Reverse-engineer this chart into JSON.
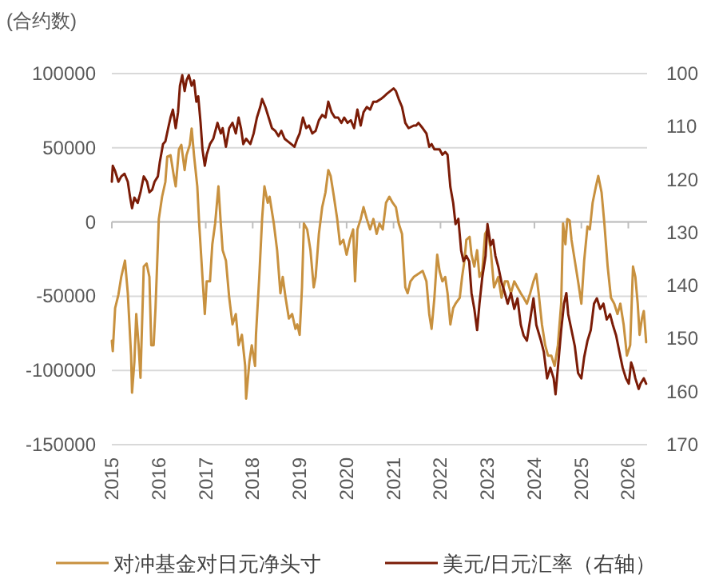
{
  "chart_data": {
    "type": "line",
    "ylabel": "(合约数)",
    "legend": "bottom",
    "grid": "y",
    "xlim": [
      2015,
      2026.4
    ],
    "xticks": [
      2015,
      2016,
      2017,
      2018,
      2019,
      2020,
      2021,
      2022,
      2023,
      2024,
      2025,
      2026
    ],
    "ylim": [
      -150000,
      100000
    ],
    "yticks": [
      -150000,
      -100000,
      -50000,
      0,
      50000,
      100000
    ],
    "y2lim": [
      170,
      100
    ],
    "y2ticks": [
      100,
      110,
      120,
      130,
      140,
      150,
      160,
      170
    ],
    "series": [
      {
        "name": "对冲基金对日元净头寸",
        "color": "#c8913f",
        "x": [
          2015.0,
          2015.02,
          2015.07,
          2015.14,
          2015.2,
          2015.28,
          2015.34,
          2015.41,
          2015.43,
          2015.48,
          2015.52,
          2015.57,
          2015.61,
          2015.68,
          2015.74,
          2015.8,
          2015.84,
          2015.89,
          2015.93,
          2016.0,
          2016.07,
          2016.14,
          2016.18,
          2016.25,
          2016.32,
          2016.36,
          2016.43,
          2016.48,
          2016.55,
          2016.59,
          2016.66,
          2016.7,
          2016.75,
          2016.82,
          2016.86,
          2016.93,
          2016.98,
          2017.02,
          2017.09,
          2017.14,
          2017.2,
          2017.27,
          2017.32,
          2017.36,
          2017.43,
          2017.5,
          2017.57,
          2017.64,
          2017.7,
          2017.77,
          2017.84,
          2017.86,
          2017.93,
          2017.98,
          2018.05,
          2018.07,
          2018.14,
          2018.2,
          2018.25,
          2018.32,
          2018.36,
          2018.45,
          2018.52,
          2018.59,
          2018.64,
          2018.7,
          2018.77,
          2018.84,
          2018.91,
          2018.95,
          2019.0,
          2019.05,
          2019.09,
          2019.16,
          2019.23,
          2019.3,
          2019.34,
          2019.41,
          2019.48,
          2019.55,
          2019.61,
          2019.66,
          2019.73,
          2019.8,
          2019.86,
          2019.93,
          2020.0,
          2020.07,
          2020.14,
          2020.18,
          2020.23,
          2020.3,
          2020.36,
          2020.43,
          2020.5,
          2020.57,
          2020.64,
          2020.7,
          2020.77,
          2020.84,
          2020.91,
          2020.98,
          2021.05,
          2021.11,
          2021.18,
          2021.25,
          2021.3,
          2021.36,
          2021.43,
          2021.62,
          2021.7,
          2021.76,
          2021.81,
          2021.87,
          2021.93,
          2021.98,
          2022.04,
          2022.1,
          2022.15,
          2022.21,
          2022.27,
          2022.32,
          2022.41,
          2022.46,
          2022.51,
          2022.55,
          2022.62,
          2022.66,
          2022.72,
          2022.78,
          2022.83,
          2022.89,
          2022.95,
          2023.0,
          2023.07,
          2023.14,
          2023.23,
          2023.3,
          2023.37,
          2023.43,
          2023.5,
          2023.57,
          2023.64,
          2023.71,
          2023.77,
          2023.84,
          2023.91,
          2023.98,
          2024.04,
          2024.09,
          2024.16,
          2024.23,
          2024.29,
          2024.36,
          2024.43,
          2024.5,
          2024.57,
          2024.61,
          2024.66,
          2024.7,
          2024.75,
          2024.79,
          2024.86,
          2024.93,
          2025.0,
          2025.06,
          2025.13,
          2025.18,
          2025.24,
          2025.31,
          2025.36,
          2025.43,
          2025.49,
          2025.56,
          2025.63,
          2025.7,
          2025.77,
          2025.83,
          2025.9,
          2025.97,
          2026.04,
          2026.1,
          2026.15,
          2026.2,
          2026.24,
          2026.29,
          2026.33,
          2026.38
        ],
        "values": [
          -80000,
          -87000,
          -58000,
          -49000,
          -37000,
          -26000,
          -48000,
          -90000,
          -115000,
          -94000,
          -62000,
          -83000,
          -105000,
          -30000,
          -28000,
          -37000,
          -83000,
          -83000,
          -58000,
          2000,
          17000,
          27000,
          44000,
          45000,
          31000,
          24000,
          49000,
          52000,
          35000,
          45000,
          52000,
          63000,
          45000,
          24000,
          -1000,
          -37000,
          -62000,
          -40000,
          -40000,
          -15000,
          -1000,
          24000,
          -1000,
          -19000,
          -26000,
          -51000,
          -69000,
          -62000,
          -83000,
          -76000,
          -97000,
          -119000,
          -94000,
          -83000,
          -97000,
          -76000,
          -37000,
          2000,
          24000,
          13000,
          17000,
          -1000,
          -19000,
          -48000,
          -37000,
          -51000,
          -65000,
          -62000,
          -72000,
          -69000,
          -76000,
          -44000,
          -1000,
          -5000,
          -19000,
          -44000,
          -37000,
          -8000,
          10000,
          20000,
          35000,
          31000,
          17000,
          2000,
          -15000,
          -12000,
          -22000,
          -12000,
          -5000,
          -40000,
          -5000,
          2000,
          10000,
          2000,
          -5000,
          2000,
          -8000,
          -1000,
          -5000,
          13000,
          17000,
          13000,
          10000,
          -1000,
          -8000,
          -44000,
          -48000,
          -40000,
          -37000,
          -33000,
          -40000,
          -62000,
          -72000,
          -51000,
          -22000,
          -33000,
          -40000,
          -37000,
          -48000,
          -69000,
          -58000,
          -55000,
          -51000,
          -37000,
          -26000,
          -12000,
          -10000,
          -22000,
          -30000,
          -19000,
          -37000,
          -33000,
          -8000,
          -5000,
          -19000,
          -44000,
          -37000,
          -51000,
          -40000,
          -40000,
          -48000,
          -40000,
          -44000,
          -48000,
          -51000,
          -55000,
          -48000,
          -40000,
          -35000,
          -48000,
          -69000,
          -83000,
          -90000,
          -90000,
          -97000,
          -83000,
          -55000,
          -1000,
          -15000,
          2000,
          1000,
          -12000,
          -26000,
          -40000,
          -55000,
          -26000,
          -3000,
          -5000,
          13000,
          24000,
          31000,
          20000,
          -1000,
          -30000,
          -51000,
          -55000,
          -62000,
          -55000,
          -69000,
          -90000,
          -83000,
          -30000,
          -37000,
          -55000,
          -76000,
          -65000,
          -60000,
          -81000
        ]
      },
      {
        "name": "美元/日元汇率（右轴）",
        "color": "#7b1c07",
        "axis": "y2",
        "x": [
          2015.0,
          2015.02,
          2015.07,
          2015.14,
          2015.2,
          2015.27,
          2015.34,
          2015.39,
          2015.43,
          2015.48,
          2015.55,
          2015.61,
          2015.68,
          2015.75,
          2015.8,
          2015.86,
          2015.91,
          2015.98,
          2016.02,
          2016.09,
          2016.14,
          2016.2,
          2016.25,
          2016.3,
          2016.36,
          2016.41,
          2016.45,
          2016.5,
          2016.55,
          2016.59,
          2016.64,
          2016.7,
          2016.75,
          2016.8,
          2016.84,
          2016.89,
          2016.93,
          2016.98,
          2017.02,
          2017.09,
          2017.16,
          2017.25,
          2017.32,
          2017.36,
          2017.43,
          2017.5,
          2017.57,
          2017.64,
          2017.7,
          2017.75,
          2017.8,
          2017.86,
          2017.95,
          2018.02,
          2018.09,
          2018.16,
          2018.2,
          2018.27,
          2018.34,
          2018.41,
          2018.48,
          2018.55,
          2018.61,
          2018.68,
          2018.75,
          2018.82,
          2018.89,
          2018.95,
          2019.0,
          2019.07,
          2019.14,
          2019.2,
          2019.27,
          2019.34,
          2019.41,
          2019.48,
          2019.55,
          2019.61,
          2019.68,
          2019.75,
          2019.82,
          2019.89,
          2019.95,
          2020.02,
          2020.09,
          2020.16,
          2020.23,
          2020.3,
          2020.36,
          2020.43,
          2020.5,
          2020.57,
          2020.64,
          2020.73,
          2020.8,
          2020.86,
          2020.93,
          2021.0,
          2021.05,
          2021.11,
          2021.18,
          2021.25,
          2021.32,
          2021.43,
          2021.48,
          2021.53,
          2021.62,
          2021.7,
          2021.76,
          2021.81,
          2021.87,
          2021.98,
          2022.04,
          2022.1,
          2022.15,
          2022.21,
          2022.27,
          2022.32,
          2022.38,
          2022.44,
          2022.49,
          2022.55,
          2022.61,
          2022.66,
          2022.72,
          2022.78,
          2022.83,
          2022.89,
          2022.96,
          2023.0,
          2023.07,
          2023.12,
          2023.17,
          2023.23,
          2023.3,
          2023.37,
          2023.43,
          2023.5,
          2023.57,
          2023.64,
          2023.71,
          2023.77,
          2023.84,
          2023.91,
          2023.98,
          2024.04,
          2024.14,
          2024.2,
          2024.27,
          2024.34,
          2024.41,
          2024.45,
          2024.5,
          2024.57,
          2024.63,
          2024.68,
          2024.72,
          2024.79,
          2024.86,
          2024.93,
          2025.0,
          2025.06,
          2025.13,
          2025.2,
          2025.27,
          2025.33,
          2025.4,
          2025.47,
          2025.54,
          2025.61,
          2025.67,
          2025.74,
          2025.81,
          2025.88,
          2025.95,
          2026.01,
          2026.06,
          2026.1,
          2026.15,
          2026.22,
          2026.26,
          2026.33,
          2026.38
        ],
        "values": [
          120.4,
          117.4,
          118.4,
          120.4,
          119.4,
          118.9,
          120.4,
          123.4,
          125.4,
          123.4,
          124.4,
          122.4,
          119.4,
          120.4,
          122.4,
          121.9,
          120.4,
          119.4,
          116.8,
          113.3,
          112.8,
          110.3,
          108.3,
          106.8,
          110.3,
          107.3,
          102.3,
          100.3,
          103.3,
          101.3,
          100.3,
          102.3,
          101.3,
          105.3,
          104.3,
          109.3,
          114.3,
          117.4,
          115.3,
          113.3,
          112.3,
          109.3,
          111.3,
          110.3,
          113.8,
          110.3,
          109.3,
          111.3,
          108.3,
          110.3,
          113.3,
          112.3,
          113.3,
          111.3,
          108.3,
          106.3,
          104.8,
          106.3,
          108.3,
          110.3,
          110.8,
          111.8,
          110.8,
          112.3,
          112.8,
          113.3,
          113.8,
          112.3,
          111.3,
          108.3,
          110.3,
          109.8,
          111.3,
          110.8,
          108.8,
          107.8,
          108.3,
          105.3,
          107.3,
          108.3,
          108.3,
          109.3,
          108.3,
          109.3,
          108.8,
          110.3,
          106.8,
          109.8,
          107.3,
          106.3,
          106.8,
          105.3,
          105.3,
          104.8,
          104.3,
          103.8,
          103.3,
          102.8,
          103.3,
          104.8,
          106.3,
          109.3,
          110.3,
          109.8,
          109.8,
          109.3,
          110.3,
          111.3,
          113.8,
          113.3,
          114.3,
          114.3,
          115.3,
          114.8,
          115.3,
          121.4,
          124.4,
          128.4,
          127.4,
          133.4,
          135.4,
          134.4,
          135.4,
          141.4,
          144.4,
          148.4,
          143.4,
          138.4,
          134.4,
          128.4,
          132.4,
          131.4,
          134.4,
          136.4,
          139.4,
          141.4,
          143.4,
          141.4,
          144.4,
          142.4,
          147.4,
          149.4,
          150.4,
          146.4,
          142.4,
          147.4,
          150.4,
          152.5,
          157.5,
          155.5,
          157.5,
          160.5,
          155.5,
          148.4,
          143.4,
          141.4,
          145.4,
          148.4,
          151.4,
          156.5,
          157.5,
          153.5,
          150.4,
          148.4,
          143.4,
          142.4,
          144.4,
          143.4,
          146.4,
          145.4,
          147.4,
          149.4,
          152.5,
          155.5,
          157.5,
          158.5,
          154.5,
          155.5,
          157.5,
          159.5,
          158.5,
          157.5,
          158.5
        ]
      }
    ]
  }
}
